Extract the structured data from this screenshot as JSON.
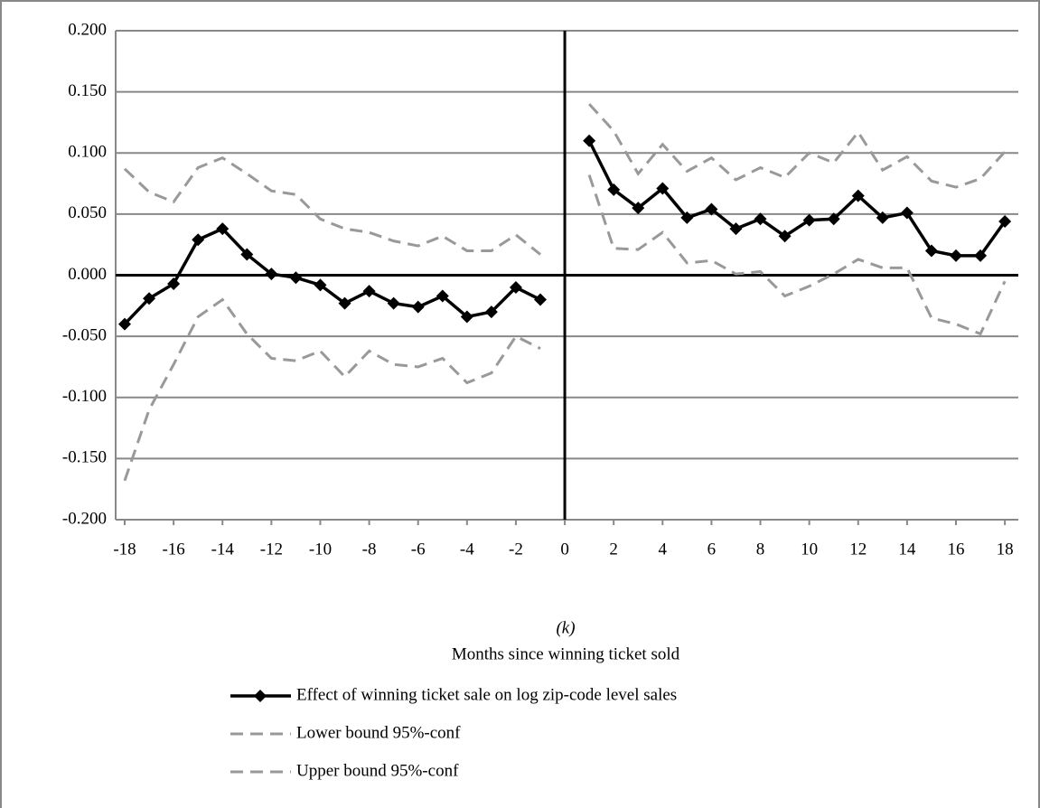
{
  "chart_data": {
    "type": "line",
    "xlabel_note": "(k)",
    "xlabel": "Months since winning ticket sold",
    "x": [
      -18,
      -17,
      -16,
      -15,
      -14,
      -13,
      -12,
      -11,
      -10,
      -9,
      -8,
      -7,
      -6,
      -5,
      -4,
      -3,
      -2,
      -1,
      0,
      1,
      2,
      3,
      4,
      5,
      6,
      7,
      8,
      9,
      10,
      11,
      12,
      13,
      14,
      15,
      16,
      17,
      18
    ],
    "series": [
      {
        "name": "Effect of winning ticket sale on log zip-code level sales",
        "color": "#000000",
        "marker": "diamond",
        "dashed": false,
        "values": [
          -0.04,
          -0.019,
          -0.007,
          0.029,
          0.038,
          0.017,
          0.001,
          -0.002,
          -0.008,
          -0.023,
          -0.013,
          -0.023,
          -0.026,
          -0.017,
          -0.034,
          -0.03,
          -0.01,
          -0.02,
          null,
          0.11,
          0.07,
          0.055,
          0.071,
          0.047,
          0.054,
          0.038,
          0.046,
          0.032,
          0.045,
          0.046,
          0.065,
          0.047,
          0.051,
          0.02,
          0.016,
          0.016,
          0.044
        ]
      },
      {
        "name": "Lower bound 95%-conf",
        "color": "#999999",
        "marker": "none",
        "dashed": true,
        "values": [
          -0.168,
          -0.11,
          -0.073,
          -0.034,
          -0.02,
          -0.048,
          -0.068,
          -0.07,
          -0.062,
          -0.083,
          -0.062,
          -0.073,
          -0.075,
          -0.068,
          -0.088,
          -0.08,
          -0.05,
          -0.06,
          null,
          0.082,
          0.022,
          0.021,
          0.035,
          0.01,
          0.012,
          0.001,
          0.003,
          -0.017,
          -0.009,
          0.001,
          0.013,
          0.006,
          0.006,
          -0.035,
          -0.04,
          -0.048,
          -0.005
        ]
      },
      {
        "name": "Upper bound 95%-conf",
        "color": "#999999",
        "marker": "none",
        "dashed": true,
        "values": [
          0.087,
          0.068,
          0.06,
          0.088,
          0.096,
          0.083,
          0.069,
          0.066,
          0.046,
          0.038,
          0.035,
          0.028,
          0.024,
          0.032,
          0.02,
          0.02,
          0.033,
          0.017,
          null,
          0.14,
          0.118,
          0.083,
          0.107,
          0.085,
          0.096,
          0.078,
          0.088,
          0.08,
          0.1,
          0.092,
          0.117,
          0.086,
          0.097,
          0.077,
          0.072,
          0.079,
          0.101
        ]
      }
    ],
    "xlim": [
      -18.37,
      18.55
    ],
    "xticks": [
      -18,
      -16,
      -14,
      -12,
      -10,
      -8,
      -6,
      -4,
      -2,
      0,
      2,
      4,
      6,
      8,
      10,
      12,
      14,
      16,
      18
    ],
    "ylim": [
      -0.2,
      0.2
    ],
    "yticks": [
      {
        "value": -0.2,
        "label": "-0.200"
      },
      {
        "value": -0.15,
        "label": "-0.150"
      },
      {
        "value": -0.1,
        "label": "-0.100"
      },
      {
        "value": -0.05,
        "label": "-0.050"
      },
      {
        "value": 0,
        "label": "0.000"
      },
      {
        "value": 0.05,
        "label": "0.050"
      },
      {
        "value": 0.1,
        "label": "0.100"
      },
      {
        "value": 0.15,
        "label": "0.150"
      },
      {
        "value": 0.2,
        "label": "0.200"
      }
    ],
    "grid": true,
    "legend": "bottom"
  }
}
